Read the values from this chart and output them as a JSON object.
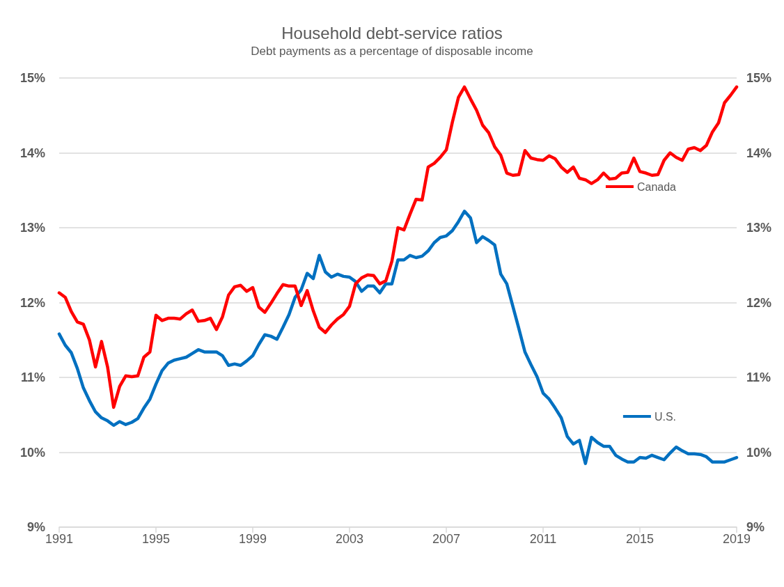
{
  "chart_data": {
    "type": "line",
    "title": "Household debt-service ratios",
    "subtitle": "Debt payments as a percentage of disposable income",
    "x": [
      1991,
      1991.25,
      1991.5,
      1991.75,
      1992,
      1992.25,
      1992.5,
      1992.75,
      1993,
      1993.25,
      1993.5,
      1993.75,
      1994,
      1994.25,
      1994.5,
      1994.75,
      1995,
      1995.25,
      1995.5,
      1995.75,
      1996,
      1996.25,
      1996.5,
      1996.75,
      1997,
      1997.25,
      1997.5,
      1997.75,
      1998,
      1998.25,
      1998.5,
      1998.75,
      1999,
      1999.25,
      1999.5,
      1999.75,
      2000,
      2000.25,
      2000.5,
      2000.75,
      2001,
      2001.25,
      2001.5,
      2001.75,
      2002,
      2002.25,
      2002.5,
      2002.75,
      2003,
      2003.25,
      2003.5,
      2003.75,
      2004,
      2004.25,
      2004.5,
      2004.75,
      2005,
      2005.25,
      2005.5,
      2005.75,
      2006,
      2006.25,
      2006.5,
      2006.75,
      2007,
      2007.25,
      2007.5,
      2007.75,
      2008,
      2008.25,
      2008.5,
      2008.75,
      2009,
      2009.25,
      2009.5,
      2009.75,
      2010,
      2010.25,
      2010.5,
      2010.75,
      2011,
      2011.25,
      2011.5,
      2011.75,
      2012,
      2012.25,
      2012.5,
      2012.75,
      2013,
      2013.25,
      2013.5,
      2013.75,
      2014,
      2014.25,
      2014.5,
      2014.75,
      2015,
      2015.25,
      2015.5,
      2015.75,
      2016,
      2016.25,
      2016.5,
      2016.75,
      2017,
      2017.25,
      2017.5,
      2017.75,
      2018,
      2018.25,
      2018.5,
      2018.75,
      2019
    ],
    "series": [
      {
        "name": "Canada",
        "color": "#ff0000",
        "values": [
          12.13,
          12.07,
          11.88,
          11.74,
          11.71,
          11.5,
          11.14,
          11.48,
          11.14,
          10.6,
          10.88,
          11.02,
          11.01,
          11.02,
          11.27,
          11.34,
          11.83,
          11.76,
          11.79,
          11.79,
          11.78,
          11.85,
          11.9,
          11.75,
          11.76,
          11.79,
          11.64,
          11.81,
          12.1,
          12.21,
          12.23,
          12.15,
          12.2,
          11.94,
          11.87,
          11.99,
          12.12,
          12.24,
          12.22,
          12.22,
          11.96,
          12.16,
          11.89,
          11.67,
          11.6,
          11.7,
          11.78,
          11.84,
          11.95,
          12.25,
          12.33,
          12.37,
          12.36,
          12.25,
          12.29,
          12.55,
          13,
          12.97,
          13.18,
          13.38,
          13.37,
          13.81,
          13.86,
          13.94,
          14.04,
          14.41,
          14.74,
          14.88,
          14.72,
          14.57,
          14.37,
          14.27,
          14.08,
          13.97,
          13.73,
          13.7,
          13.71,
          14.03,
          13.93,
          13.91,
          13.9,
          13.96,
          13.92,
          13.81,
          13.74,
          13.81,
          13.66,
          13.64,
          13.59,
          13.64,
          13.73,
          13.65,
          13.66,
          13.73,
          13.74,
          13.93,
          13.75,
          13.73,
          13.7,
          13.71,
          13.9,
          14,
          13.94,
          13.9,
          14.05,
          14.07,
          14.03,
          14.1,
          14.28,
          14.4,
          14.67,
          14.77,
          14.88
        ]
      },
      {
        "name": "U.S.",
        "color": "#0070c0",
        "values": [
          11.58,
          11.43,
          11.33,
          11.12,
          10.86,
          10.69,
          10.54,
          10.46,
          10.42,
          10.36,
          10.41,
          10.37,
          10.4,
          10.45,
          10.59,
          10.71,
          10.91,
          11.09,
          11.19,
          11.23,
          11.25,
          11.27,
          11.32,
          11.37,
          11.34,
          11.34,
          11.34,
          11.29,
          11.16,
          11.18,
          11.16,
          11.22,
          11.29,
          11.44,
          11.57,
          11.55,
          11.51,
          11.67,
          11.84,
          12.07,
          12.17,
          12.39,
          12.32,
          12.63,
          12.41,
          12.34,
          12.38,
          12.35,
          12.34,
          12.28,
          12.15,
          12.22,
          12.22,
          12.13,
          12.25,
          12.25,
          12.57,
          12.57,
          12.63,
          12.6,
          12.62,
          12.69,
          12.8,
          12.87,
          12.89,
          12.96,
          13.08,
          13.22,
          13.13,
          12.8,
          12.88,
          12.83,
          12.77,
          12.38,
          12.25,
          11.95,
          11.65,
          11.34,
          11.17,
          11.01,
          10.79,
          10.71,
          10.59,
          10.46,
          10.21,
          10.11,
          10.16,
          9.85,
          10.2,
          10.13,
          10.08,
          10.08,
          9.96,
          9.91,
          9.87,
          9.87,
          9.93,
          9.92,
          9.96,
          9.93,
          9.9,
          9.99,
          10.07,
          10.02,
          9.98,
          9.98,
          9.97,
          9.94,
          9.87,
          9.87,
          9.87,
          9.9,
          9.93
        ]
      }
    ],
    "xlim": [
      1991,
      2019
    ],
    "xticks": [
      1991,
      1995,
      1999,
      2003,
      2007,
      2011,
      2015,
      2019
    ],
    "ylim": [
      9,
      15
    ],
    "yticks": [
      {
        "value": 9,
        "label": "9%"
      },
      {
        "value": 10,
        "label": "10%"
      },
      {
        "value": 11,
        "label": "11%"
      },
      {
        "value": 12,
        "label": "12%"
      },
      {
        "value": 13,
        "label": "13%"
      },
      {
        "value": 14,
        "label": "14%"
      },
      {
        "value": 15,
        "label": "15%"
      }
    ],
    "y2lim": [
      9,
      15
    ],
    "y2ticks": [
      {
        "value": 9,
        "label": "9%"
      },
      {
        "value": 10,
        "label": "10%"
      },
      {
        "value": 11,
        "label": "11%"
      },
      {
        "value": 12,
        "label": "12%"
      },
      {
        "value": 13,
        "label": "13%"
      },
      {
        "value": 14,
        "label": "14%"
      },
      {
        "value": 15,
        "label": "15%"
      }
    ],
    "grid": "y",
    "legend": "right",
    "marker": "none",
    "line_style": "solid"
  }
}
